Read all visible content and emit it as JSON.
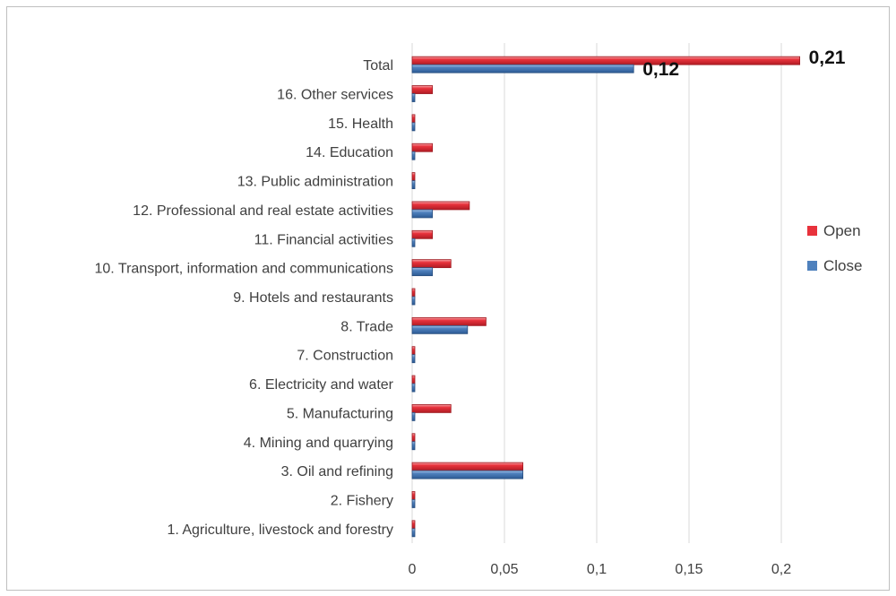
{
  "chart_data": {
    "type": "bar",
    "orientation": "horizontal",
    "categories": [
      "1. Agriculture, livestock and forestry",
      "2. Fishery",
      "3. Oil and refining",
      "4. Mining and quarrying",
      "5. Manufacturing",
      "6. Electricity and water",
      "7. Construction",
      "8. Trade",
      "9. Hotels and restaurants",
      "10. Transport, information and communications",
      "11. Financial activities",
      "12. Professional and real estate activities",
      "13. Public administration",
      "14. Education",
      "15. Health",
      "16. Other services",
      "Total"
    ],
    "series": [
      {
        "name": "Open",
        "color": "#e8323c",
        "values": [
          0.001,
          0.001,
          0.06,
          0.001,
          0.021,
          0.001,
          0.001,
          0.04,
          0.001,
          0.021,
          0.011,
          0.031,
          0.001,
          0.011,
          0.001,
          0.011,
          0.21
        ]
      },
      {
        "name": "Close",
        "color": "#4f81bd",
        "values": [
          0.001,
          0.001,
          0.06,
          0.001,
          0.001,
          0.001,
          0.001,
          0.03,
          0.001,
          0.011,
          0.001,
          0.011,
          0.001,
          0.001,
          0.001,
          0.001,
          0.12
        ]
      }
    ],
    "data_labels": [
      {
        "series": "Open",
        "category": "Total",
        "text": "0,21"
      },
      {
        "series": "Close",
        "category": "Total",
        "text": "0,12"
      }
    ],
    "xticks": [
      "0",
      "0,05",
      "0,1",
      "0,15",
      "0,2"
    ],
    "xtick_values": [
      0,
      0.05,
      0.1,
      0.15,
      0.2
    ],
    "xlim": [
      0,
      0.25
    ],
    "grid": "vertical",
    "legend_position": "right",
    "title": "",
    "xlabel": "",
    "ylabel": ""
  }
}
